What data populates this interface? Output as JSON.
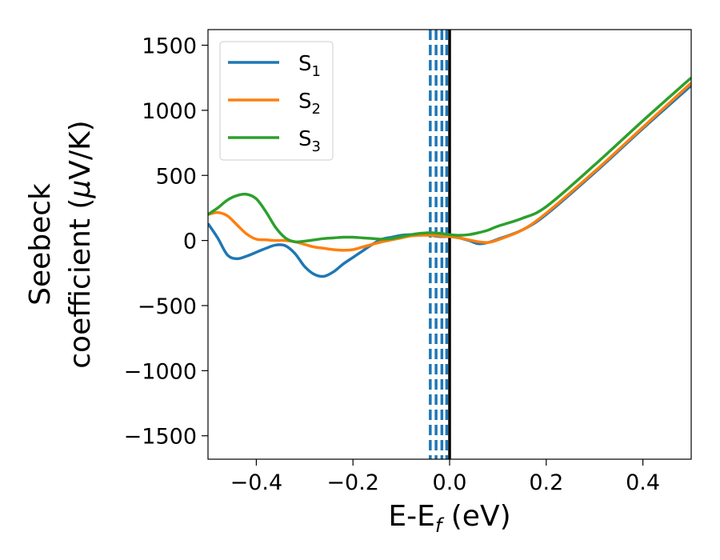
{
  "chart_data": {
    "type": "line",
    "xlabel": "E-E",
    "xlabel_sub": "f",
    "xlabel_unit": " (eV)",
    "ylabel_line1": "Seebeck",
    "ylabel_line2": "coefficient  (",
    "ylabel_mu": "μ",
    "ylabel_unit": "V/K)",
    "xlim": [
      -0.5,
      0.5
    ],
    "ylim": [
      -1680,
      1620
    ],
    "x_ticks": [
      -0.4,
      -0.2,
      0.0,
      0.2,
      0.4
    ],
    "x_tick_labels": [
      "−0.4",
      "−0.2",
      "0.0",
      "0.2",
      "0.4"
    ],
    "y_ticks": [
      1500,
      1000,
      500,
      0,
      -500,
      -1000,
      -1500
    ],
    "y_tick_labels": [
      "1500",
      "1000",
      "500",
      "0",
      "−500",
      "−1000",
      "−1500"
    ],
    "grid": false,
    "legend_position": "top-left",
    "series": [
      {
        "name": "S",
        "name_sub": "1",
        "color": "#1f77b4",
        "x": [
          -0.5,
          -0.48,
          -0.46,
          -0.44,
          -0.42,
          -0.4,
          -0.38,
          -0.36,
          -0.34,
          -0.32,
          -0.3,
          -0.28,
          -0.26,
          -0.24,
          -0.22,
          -0.2,
          -0.18,
          -0.16,
          -0.14,
          -0.12,
          -0.1,
          -0.08,
          -0.06,
          -0.04,
          -0.02,
          0.0,
          0.02,
          0.04,
          0.06,
          0.08,
          0.1,
          0.15,
          0.2,
          0.3,
          0.4,
          0.5
        ],
        "y": [
          130,
          20,
          -110,
          -140,
          -120,
          -90,
          -60,
          -35,
          -40,
          -100,
          -200,
          -260,
          -275,
          -240,
          -180,
          -130,
          -80,
          -30,
          10,
          25,
          40,
          45,
          45,
          40,
          30,
          30,
          20,
          0,
          -25,
          -15,
          10,
          80,
          200,
          520,
          860,
          1190
        ]
      },
      {
        "name": "S",
        "name_sub": "2",
        "color": "#ff7f0e",
        "x": [
          -0.5,
          -0.48,
          -0.46,
          -0.44,
          -0.42,
          -0.4,
          -0.38,
          -0.36,
          -0.34,
          -0.32,
          -0.3,
          -0.28,
          -0.26,
          -0.24,
          -0.22,
          -0.2,
          -0.18,
          -0.16,
          -0.14,
          -0.12,
          -0.1,
          -0.08,
          -0.06,
          -0.04,
          -0.02,
          0.0,
          0.02,
          0.04,
          0.06,
          0.08,
          0.1,
          0.15,
          0.2,
          0.3,
          0.4,
          0.5
        ],
        "y": [
          200,
          215,
          190,
          120,
          50,
          10,
          5,
          0,
          0,
          -10,
          -30,
          -50,
          -60,
          -70,
          -75,
          -70,
          -50,
          -30,
          -10,
          5,
          20,
          35,
          40,
          40,
          35,
          30,
          20,
          5,
          -10,
          -15,
          5,
          80,
          210,
          530,
          870,
          1210
        ]
      },
      {
        "name": "S",
        "name_sub": "3",
        "color": "#2ca02c",
        "x": [
          -0.5,
          -0.48,
          -0.46,
          -0.44,
          -0.42,
          -0.4,
          -0.38,
          -0.36,
          -0.34,
          -0.32,
          -0.3,
          -0.28,
          -0.26,
          -0.24,
          -0.22,
          -0.2,
          -0.18,
          -0.16,
          -0.14,
          -0.12,
          -0.1,
          -0.08,
          -0.06,
          -0.04,
          -0.02,
          0.0,
          0.02,
          0.04,
          0.06,
          0.08,
          0.1,
          0.15,
          0.2,
          0.3,
          0.4,
          0.5
        ],
        "y": [
          200,
          250,
          310,
          345,
          355,
          320,
          220,
          100,
          20,
          -10,
          -5,
          5,
          15,
          20,
          25,
          25,
          20,
          15,
          10,
          15,
          30,
          45,
          55,
          60,
          55,
          45,
          40,
          45,
          60,
          80,
          110,
          170,
          260,
          580,
          920,
          1250
        ]
      }
    ],
    "vertical_lines": [
      {
        "x": -0.04,
        "color": "#1f77b4",
        "style": "dashed"
      },
      {
        "x": -0.028,
        "color": "#1f77b4",
        "style": "dashed"
      },
      {
        "x": -0.016,
        "color": "#1f77b4",
        "style": "dashed"
      },
      {
        "x": -0.006,
        "color": "#1f77b4",
        "style": "dashed"
      },
      {
        "x": 0.0,
        "color": "#000000",
        "style": "solid"
      }
    ]
  }
}
